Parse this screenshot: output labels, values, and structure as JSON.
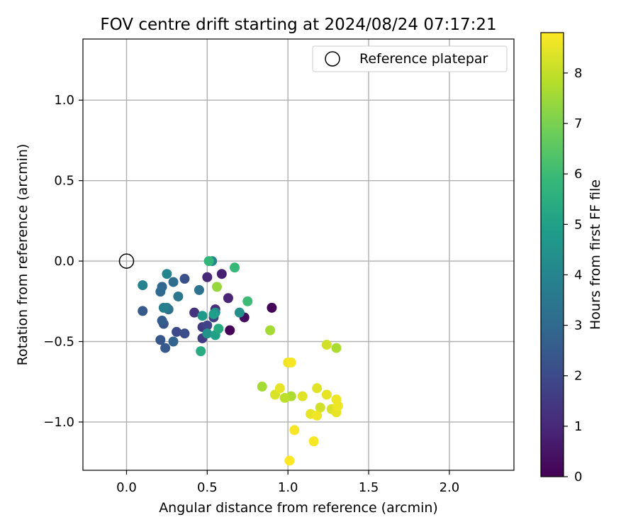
{
  "chart_data": {
    "type": "scatter",
    "title": "FOV centre drift starting at 2024/08/24 07:17:21",
    "xlabel": "Angular distance from reference (arcmin)",
    "ylabel": "Rotation from reference (arcmin)",
    "xlim": [
      -0.27,
      2.4
    ],
    "ylim": [
      -1.3,
      1.38
    ],
    "x_ticks": [
      0.0,
      0.5,
      1.0,
      1.5,
      2.0
    ],
    "x_tick_labels": [
      "0.0",
      "0.5",
      "1.0",
      "1.5",
      "2.0"
    ],
    "y_ticks": [
      1.0,
      0.5,
      0.0,
      -0.5,
      -1.0
    ],
    "y_tick_labels": [
      "1.0",
      "0.5",
      "0.0",
      "−0.5",
      "−1.0"
    ],
    "grid": true,
    "legend": {
      "position": "top-right",
      "entries": [
        "Reference platepar"
      ]
    },
    "reference_point": {
      "x": 0.0,
      "y": 0.0
    },
    "colorbar": {
      "label": "Hours from first FF file",
      "range": [
        0,
        8.8
      ],
      "ticks": [
        0,
        1,
        2,
        3,
        4,
        5,
        6,
        7,
        8
      ],
      "tick_labels": [
        "0",
        "1",
        "2",
        "3",
        "4",
        "5",
        "6",
        "7",
        "8"
      ],
      "colormap": "viridis",
      "colormap_stops": [
        "#440154",
        "#482878",
        "#3e4989",
        "#31688e",
        "#26828e",
        "#1f9e89",
        "#35b779",
        "#6ece58",
        "#b5de2b",
        "#fde725"
      ]
    },
    "points": [
      {
        "x": 0.64,
        "y": -0.43,
        "h": 0.1
      },
      {
        "x": 0.9,
        "y": -0.29,
        "h": 0.1
      },
      {
        "x": 0.73,
        "y": -0.35,
        "h": 0.3
      },
      {
        "x": 0.59,
        "y": -0.08,
        "h": 0.8
      },
      {
        "x": 0.63,
        "y": -0.23,
        "h": 0.9
      },
      {
        "x": 0.5,
        "y": -0.1,
        "h": 1.0
      },
      {
        "x": 0.55,
        "y": -0.3,
        "h": 1.1
      },
      {
        "x": 0.42,
        "y": -0.32,
        "h": 1.3
      },
      {
        "x": 0.47,
        "y": -0.41,
        "h": 1.5
      },
      {
        "x": 0.47,
        "y": -0.48,
        "h": 1.6
      },
      {
        "x": 0.54,
        "y": -0.35,
        "h": 1.7
      },
      {
        "x": 0.5,
        "y": -0.4,
        "h": 1.8
      },
      {
        "x": 0.31,
        "y": -0.44,
        "h": 2.0
      },
      {
        "x": 0.36,
        "y": -0.45,
        "h": 2.1
      },
      {
        "x": 0.36,
        "y": -0.11,
        "h": 2.2
      },
      {
        "x": 0.23,
        "y": -0.39,
        "h": 2.3
      },
      {
        "x": 0.21,
        "y": -0.49,
        "h": 2.4
      },
      {
        "x": 0.24,
        "y": -0.54,
        "h": 2.5
      },
      {
        "x": 0.1,
        "y": -0.31,
        "h": 2.5
      },
      {
        "x": 0.22,
        "y": -0.37,
        "h": 2.6
      },
      {
        "x": 0.29,
        "y": -0.5,
        "h": 2.8
      },
      {
        "x": 0.22,
        "y": -0.16,
        "h": 2.9
      },
      {
        "x": 0.21,
        "y": -0.19,
        "h": 3.0
      },
      {
        "x": 0.29,
        "y": -0.13,
        "h": 3.1
      },
      {
        "x": 0.26,
        "y": -0.3,
        "h": 3.2
      },
      {
        "x": 0.45,
        "y": -0.18,
        "h": 3.3
      },
      {
        "x": 0.32,
        "y": -0.22,
        "h": 3.5
      },
      {
        "x": 0.25,
        "y": -0.29,
        "h": 3.6
      },
      {
        "x": 0.23,
        "y": -0.29,
        "h": 3.8
      },
      {
        "x": 0.1,
        "y": -0.15,
        "h": 3.9
      },
      {
        "x": 0.25,
        "y": -0.08,
        "h": 4.0
      },
      {
        "x": 0.53,
        "y": 0.0,
        "h": 4.1
      },
      {
        "x": 0.55,
        "y": -0.32,
        "h": 4.3
      },
      {
        "x": 0.7,
        "y": -0.32,
        "h": 4.4
      },
      {
        "x": 0.5,
        "y": -0.45,
        "h": 4.5
      },
      {
        "x": 0.47,
        "y": -0.34,
        "h": 4.8
      },
      {
        "x": 0.54,
        "y": -0.33,
        "h": 4.9
      },
      {
        "x": 0.55,
        "y": -0.46,
        "h": 5.0
      },
      {
        "x": 0.57,
        "y": -0.42,
        "h": 5.3
      },
      {
        "x": 0.46,
        "y": -0.56,
        "h": 5.4
      },
      {
        "x": 0.51,
        "y": 0.0,
        "h": 5.8
      },
      {
        "x": 0.67,
        "y": -0.04,
        "h": 5.9
      },
      {
        "x": 0.75,
        "y": -0.25,
        "h": 6.0
      },
      {
        "x": 0.56,
        "y": -0.16,
        "h": 7.4
      },
      {
        "x": 0.89,
        "y": -0.43,
        "h": 7.6
      },
      {
        "x": 0.84,
        "y": -0.78,
        "h": 7.6
      },
      {
        "x": 1.02,
        "y": -0.84,
        "h": 7.7
      },
      {
        "x": 1.3,
        "y": -0.54,
        "h": 7.7
      },
      {
        "x": 0.98,
        "y": -0.85,
        "h": 7.9
      },
      {
        "x": 1.24,
        "y": -0.52,
        "h": 8.2
      },
      {
        "x": 1.2,
        "y": -0.91,
        "h": 8.2
      },
      {
        "x": 1.27,
        "y": -0.92,
        "h": 8.3
      },
      {
        "x": 0.92,
        "y": -0.83,
        "h": 8.3
      },
      {
        "x": 1.09,
        "y": -0.84,
        "h": 8.4
      },
      {
        "x": 1.18,
        "y": -0.79,
        "h": 8.4
      },
      {
        "x": 0.95,
        "y": -0.79,
        "h": 8.5
      },
      {
        "x": 1.24,
        "y": -0.83,
        "h": 8.5
      },
      {
        "x": 1.14,
        "y": -0.95,
        "h": 8.5
      },
      {
        "x": 1.3,
        "y": -0.94,
        "h": 8.5
      },
      {
        "x": 1.31,
        "y": -0.9,
        "h": 8.6
      },
      {
        "x": 1.18,
        "y": -0.96,
        "h": 8.6
      },
      {
        "x": 1.3,
        "y": -0.86,
        "h": 8.6
      },
      {
        "x": 1.0,
        "y": -0.63,
        "h": 8.6
      },
      {
        "x": 1.02,
        "y": -0.63,
        "h": 8.7
      },
      {
        "x": 1.04,
        "y": -1.05,
        "h": 8.7
      },
      {
        "x": 1.16,
        "y": -1.12,
        "h": 8.7
      },
      {
        "x": 1.01,
        "y": -1.24,
        "h": 8.8
      }
    ]
  }
}
